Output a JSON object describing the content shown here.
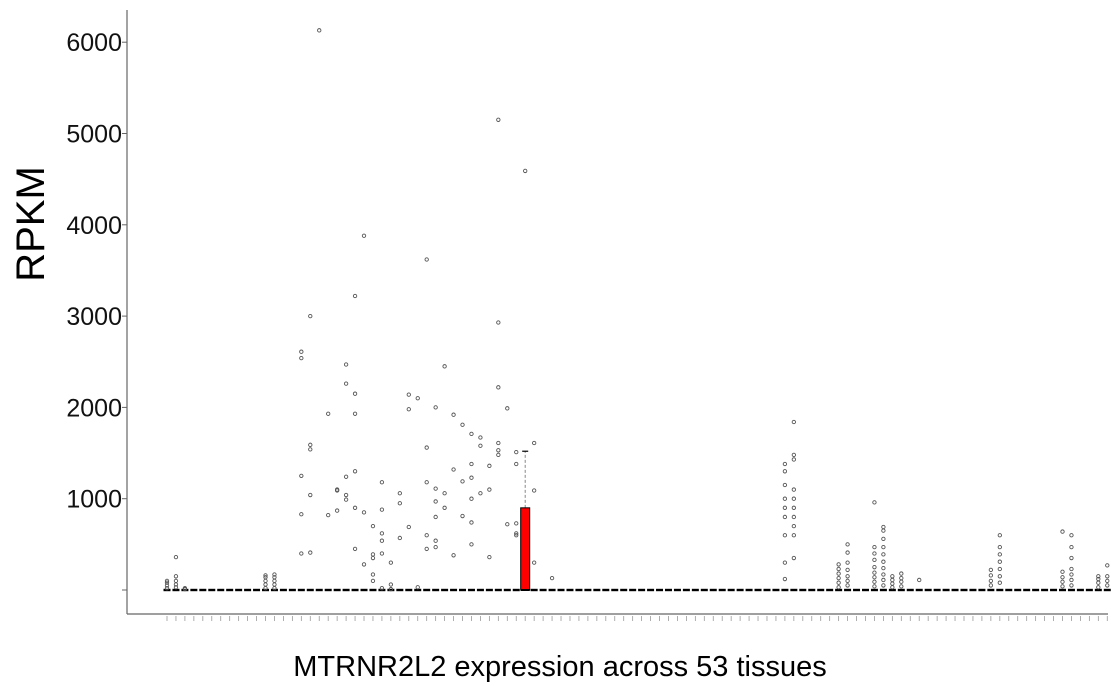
{
  "chart_data": {
    "type": "box",
    "title": "",
    "xlabel": "MTRNR2L2 expression across 53 tissues",
    "ylabel": "RPKM",
    "ylim": [
      -250,
      6300
    ],
    "yticks": [
      0,
      1000,
      2000,
      3000,
      4000,
      5000,
      6000
    ],
    "ytick_labels": [
      "",
      "1000",
      "2000",
      "3000",
      "4000",
      "5000",
      "6000"
    ],
    "category_count": 106,
    "grid": false,
    "legend": "none",
    "colors": {
      "highlight_box": "#ff0000",
      "box": "#000000",
      "outlier": "#555555"
    },
    "highlight": {
      "index": 40,
      "q1": 0,
      "median": 0,
      "q3": 900,
      "whisker_high": 1520
    },
    "outliers": [
      {
        "i": 0,
        "y": [
          20,
          50,
          80,
          100
        ]
      },
      {
        "i": 1,
        "y": [
          30,
          60,
          100,
          150,
          360
        ]
      },
      {
        "i": 2,
        "y": [
          10,
          20
        ]
      },
      {
        "i": 11,
        "y": [
          20,
          60,
          100,
          140,
          160
        ]
      },
      {
        "i": 12,
        "y": [
          20,
          60,
          100,
          140,
          170
        ]
      },
      {
        "i": 15,
        "y": [
          400,
          830,
          1250,
          2540,
          2610
        ]
      },
      {
        "i": 16,
        "y": [
          410,
          1040,
          1540,
          1590,
          3000
        ]
      },
      {
        "i": 17,
        "y": [
          6130
        ]
      },
      {
        "i": 18,
        "y": [
          820,
          1930
        ]
      },
      {
        "i": 19,
        "y": [
          870,
          1090,
          1100
        ]
      },
      {
        "i": 20,
        "y": [
          990,
          1040,
          1240,
          2260,
          2470
        ]
      },
      {
        "i": 21,
        "y": [
          450,
          900,
          1300,
          1930,
          2150,
          3220
        ]
      },
      {
        "i": 22,
        "y": [
          280,
          850,
          3880
        ]
      },
      {
        "i": 23,
        "y": [
          100,
          170,
          350,
          390,
          700
        ]
      },
      {
        "i": 24,
        "y": [
          20,
          400,
          540,
          620,
          880,
          1180
        ]
      },
      {
        "i": 25,
        "y": [
          10,
          60,
          300
        ]
      },
      {
        "i": 26,
        "y": [
          570,
          950,
          1060
        ]
      },
      {
        "i": 27,
        "y": [
          690,
          1980,
          2140
        ]
      },
      {
        "i": 28,
        "y": [
          30,
          2100
        ]
      },
      {
        "i": 29,
        "y": [
          450,
          600,
          1180,
          1560,
          3620
        ]
      },
      {
        "i": 30,
        "y": [
          470,
          540,
          800,
          970,
          1110,
          2000
        ]
      },
      {
        "i": 31,
        "y": [
          900,
          1060,
          2450
        ]
      },
      {
        "i": 32,
        "y": [
          380,
          1320,
          1920
        ]
      },
      {
        "i": 33,
        "y": [
          810,
          1190,
          1810
        ]
      },
      {
        "i": 34,
        "y": [
          500,
          740,
          1000,
          1230,
          1380,
          1710
        ]
      },
      {
        "i": 35,
        "y": [
          1060,
          1580,
          1670
        ]
      },
      {
        "i": 36,
        "y": [
          360,
          1100,
          1360
        ]
      },
      {
        "i": 37,
        "y": [
          1480,
          1530,
          1610,
          2220,
          2930,
          5150
        ]
      },
      {
        "i": 38,
        "y": [
          720,
          1990
        ]
      },
      {
        "i": 39,
        "y": [
          600,
          620,
          730,
          1380,
          1510
        ]
      },
      {
        "i": 40,
        "y": [
          4590
        ]
      },
      {
        "i": 41,
        "y": [
          300,
          1090,
          1610
        ]
      },
      {
        "i": 43,
        "y": [
          130
        ]
      },
      {
        "i": 69,
        "y": [
          120,
          300,
          600,
          800,
          900,
          1000,
          1150,
          1300,
          1380
        ]
      },
      {
        "i": 70,
        "y": [
          350,
          600,
          700,
          800,
          900,
          1000,
          1100,
          1430,
          1480,
          1840
        ]
      },
      {
        "i": 75,
        "y": [
          30,
          80,
          130,
          180,
          230,
          280
        ]
      },
      {
        "i": 76,
        "y": [
          50,
          100,
          150,
          220,
          300,
          410,
          500
        ]
      },
      {
        "i": 79,
        "y": [
          40,
          90,
          140,
          190,
          250,
          330,
          400,
          470,
          960
        ]
      },
      {
        "i": 80,
        "y": [
          50,
          110,
          170,
          240,
          310,
          390,
          470,
          560,
          650,
          690
        ]
      },
      {
        "i": 81,
        "y": [
          30,
          70,
          110,
          150
        ]
      },
      {
        "i": 82,
        "y": [
          40,
          90,
          130,
          180
        ]
      },
      {
        "i": 84,
        "y": [
          110
        ]
      },
      {
        "i": 92,
        "y": [
          50,
          100,
          160,
          220
        ]
      },
      {
        "i": 93,
        "y": [
          80,
          150,
          230,
          310,
          390,
          470,
          600
        ]
      },
      {
        "i": 100,
        "y": [
          40,
          90,
          140,
          200,
          640
        ]
      },
      {
        "i": 101,
        "y": [
          50,
          110,
          170,
          230,
          350,
          470,
          600
        ]
      },
      {
        "i": 104,
        "y": [
          30,
          80,
          120,
          150
        ]
      },
      {
        "i": 105,
        "y": [
          50,
          100,
          150,
          270
        ]
      }
    ]
  }
}
